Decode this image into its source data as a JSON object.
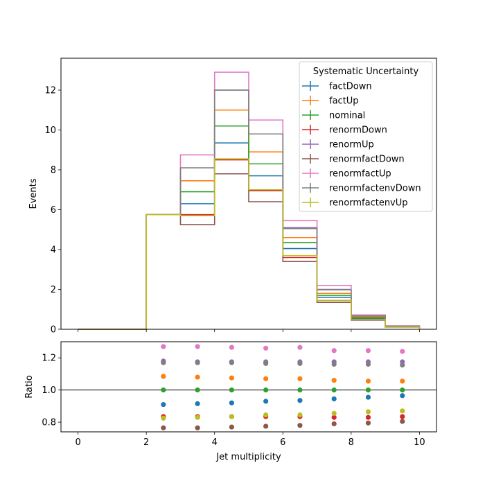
{
  "chart_data": [
    {
      "type": "line",
      "drawstyle": "step",
      "xlabel": "",
      "ylabel": "Events",
      "xlim": [
        -0.5,
        10.5
      ],
      "ylim": [
        0,
        13.6
      ],
      "xticks": [
        "0",
        "2",
        "4",
        "6",
        "8",
        "10"
      ],
      "yticks": [
        "0",
        "2",
        "4",
        "6",
        "8",
        "10",
        "12"
      ],
      "legend_title": "Systematic Uncertainty",
      "legend_position": "upper right",
      "bin_edges": [
        0,
        1,
        2,
        3,
        4,
        5,
        6,
        7,
        8,
        9,
        10
      ],
      "series": [
        {
          "name": "factDown",
          "color": "#1f77b4",
          "values": [
            0,
            0,
            5.75,
            6.3,
            9.35,
            7.7,
            4.05,
            1.6,
            0.55,
            0.13,
            0.05
          ]
        },
        {
          "name": "factUp",
          "color": "#ff7f0e",
          "values": [
            0,
            0,
            5.75,
            7.45,
            11.0,
            8.9,
            4.6,
            1.8,
            0.62,
            0.15,
            0.06
          ]
        },
        {
          "name": "nominal",
          "color": "#2ca02c",
          "values": [
            0,
            0,
            5.75,
            6.9,
            10.2,
            8.3,
            4.35,
            1.7,
            0.58,
            0.14,
            0.05
          ]
        },
        {
          "name": "renormDown",
          "color": "#d62728",
          "values": [
            0,
            0,
            5.75,
            5.75,
            8.5,
            6.95,
            3.6,
            1.45,
            0.49,
            0.12,
            0.04
          ]
        },
        {
          "name": "renormUp",
          "color": "#9467bd",
          "values": [
            0,
            0,
            5.75,
            8.1,
            12.0,
            9.8,
            5.1,
            2.0,
            0.68,
            0.16,
            0.06
          ]
        },
        {
          "name": "renormfactDown",
          "color": "#8c564b",
          "values": [
            0,
            0,
            5.75,
            5.25,
            7.8,
            6.4,
            3.4,
            1.35,
            0.46,
            0.11,
            0.04
          ]
        },
        {
          "name": "renormfactUp",
          "color": "#e377c2",
          "values": [
            0,
            0,
            5.75,
            8.75,
            12.9,
            10.5,
            5.45,
            2.2,
            0.72,
            0.17,
            0.07
          ]
        },
        {
          "name": "renormfactenvDown",
          "color": "#7f7f7f",
          "values": [
            0,
            0,
            5.75,
            8.1,
            12.0,
            9.8,
            5.05,
            1.98,
            0.67,
            0.16,
            0.06
          ]
        },
        {
          "name": "renormfactenvUp",
          "color": "#bcbd22",
          "values": [
            0,
            0,
            5.75,
            5.7,
            8.55,
            7.0,
            3.7,
            1.45,
            0.5,
            0.12,
            0.04
          ]
        }
      ]
    },
    {
      "type": "scatter",
      "xlabel": "Jet multiplicity",
      "ylabel": "Ratio",
      "xlim": [
        -0.5,
        10.5
      ],
      "ylim": [
        0.74,
        1.3
      ],
      "xticks": [
        "0",
        "2",
        "4",
        "6",
        "8",
        "10"
      ],
      "yticks": [
        "0.8",
        "1.0",
        "1.2"
      ],
      "reference_line": 1.0,
      "x": [
        2.5,
        3.5,
        4.5,
        5.5,
        6.5,
        7.5,
        8.5,
        9.5
      ],
      "series": [
        {
          "name": "factDown",
          "color": "#1f77b4",
          "values": [
            0.91,
            0.915,
            0.92,
            0.93,
            0.935,
            0.945,
            0.955,
            0.965
          ]
        },
        {
          "name": "factUp",
          "color": "#ff7f0e",
          "values": [
            1.085,
            1.08,
            1.075,
            1.07,
            1.07,
            1.06,
            1.055,
            1.055
          ]
        },
        {
          "name": "nominal",
          "color": "#2ca02c",
          "values": [
            1.0,
            1.0,
            1.0,
            1.0,
            1.0,
            1.0,
            1.0,
            1.0
          ]
        },
        {
          "name": "renormDown",
          "color": "#d62728",
          "values": [
            0.835,
            0.835,
            0.835,
            0.835,
            0.835,
            0.83,
            0.83,
            0.835
          ]
        },
        {
          "name": "renormUp",
          "color": "#9467bd",
          "values": [
            1.18,
            1.175,
            1.175,
            1.175,
            1.175,
            1.175,
            1.175,
            1.175
          ]
        },
        {
          "name": "renormfactDown",
          "color": "#8c564b",
          "values": [
            0.765,
            0.765,
            0.77,
            0.775,
            0.78,
            0.79,
            0.795,
            0.805
          ]
        },
        {
          "name": "renormfactUp",
          "color": "#e377c2",
          "values": [
            1.27,
            1.27,
            1.265,
            1.26,
            1.265,
            1.245,
            1.245,
            1.24
          ]
        },
        {
          "name": "renormfactenvDown",
          "color": "#7f7f7f",
          "values": [
            1.17,
            1.17,
            1.17,
            1.165,
            1.165,
            1.16,
            1.16,
            1.155
          ]
        },
        {
          "name": "renormfactenvUp",
          "color": "#bcbd22",
          "values": [
            0.825,
            0.83,
            0.835,
            0.845,
            0.845,
            0.855,
            0.865,
            0.87
          ]
        }
      ]
    }
  ]
}
